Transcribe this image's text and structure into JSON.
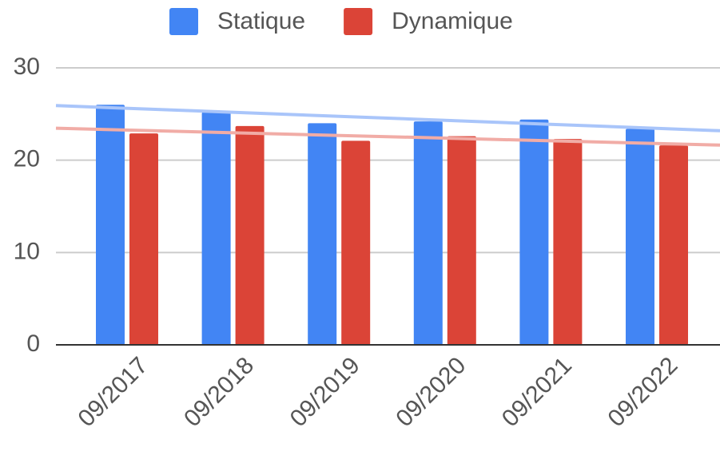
{
  "chart_data": {
    "type": "bar",
    "categories": [
      "09/2017",
      "09/2018",
      "09/2019",
      "09/2020",
      "09/2021",
      "09/2022"
    ],
    "series": [
      {
        "name": "Statique",
        "color": "#4285f4",
        "values": [
          26.0,
          25.2,
          24.0,
          24.2,
          24.4,
          23.4
        ]
      },
      {
        "name": "Dynamique",
        "color": "#db4437",
        "values": [
          22.9,
          23.7,
          22.1,
          22.6,
          22.3,
          21.6
        ]
      }
    ],
    "ylim": [
      0,
      30
    ],
    "yticks": [
      0,
      10,
      20,
      30
    ],
    "grid": true,
    "trendline": true,
    "legend": "top"
  }
}
